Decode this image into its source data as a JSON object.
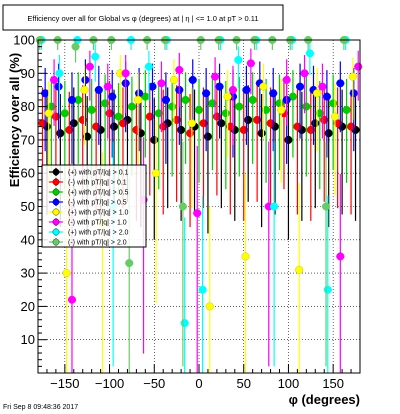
{
  "chart_data": {
    "type": "scatter",
    "title": "Efficiency over all for Global vs φ (degrees) at | η | <= 1.0 at pT > 0.11",
    "xlabel": "φ (degrees)",
    "ylabel": "Efficiency over all (%)",
    "xlim": [
      -180,
      180
    ],
    "ylim": [
      0,
      100
    ],
    "x_ticks": [
      -150,
      -100,
      -50,
      0,
      50,
      100,
      150
    ],
    "y_ticks": [
      10,
      20,
      30,
      40,
      50,
      60,
      70,
      80,
      90,
      100
    ],
    "x_tick_labels": [
      "−150",
      "−100",
      "−50",
      "0",
      "50",
      "100",
      "150"
    ],
    "y_tick_labels": [
      "10",
      "20",
      "30",
      "40",
      "50",
      "60",
      "70",
      "80",
      "90",
      "100"
    ],
    "grid": true,
    "legend_position": "left-middle",
    "footer": "Fri Sep  8 09:48:36 2017",
    "series": [
      {
        "name": "(+) with pT/|q| > 0.1",
        "color": "#000000",
        "marker": "circle",
        "x": [
          -170,
          -155,
          -140,
          -125,
          -110,
          -95,
          -80,
          -65,
          -50,
          -35,
          -20,
          -5,
          10,
          25,
          40,
          55,
          70,
          85,
          100,
          115,
          130,
          145,
          160,
          175
        ],
        "y": [
          74,
          72,
          75,
          71,
          73,
          74,
          76,
          72,
          70,
          75,
          73,
          74,
          71,
          75,
          73,
          76,
          72,
          74,
          70,
          73,
          75,
          72,
          74,
          73
        ]
      },
      {
        "name": "(-) with pT/|q| > 0.1",
        "color": "#ff0000",
        "marker": "circle",
        "x": [
          -175,
          -160,
          -145,
          -130,
          -115,
          -100,
          -85,
          -70,
          -55,
          -40,
          -25,
          -10,
          5,
          20,
          35,
          50,
          65,
          80,
          95,
          110,
          125,
          140,
          155,
          170
        ],
        "y": [
          75,
          77,
          73,
          76,
          74,
          78,
          75,
          73,
          77,
          74,
          76,
          72,
          75,
          77,
          74,
          73,
          76,
          75,
          78,
          74,
          73,
          76,
          75,
          74
        ]
      },
      {
        "name": "(+) with pT/|q| > 0.5",
        "color": "#00cc00",
        "marker": "circle",
        "x": [
          -165,
          -150,
          -135,
          -120,
          -105,
          -90,
          -75,
          -60,
          -45,
          -30,
          -15,
          0,
          15,
          30,
          45,
          60,
          75,
          90,
          105,
          120,
          135,
          150,
          165
        ],
        "y": [
          80,
          78,
          82,
          79,
          81,
          77,
          80,
          83,
          78,
          80,
          82,
          79,
          81,
          78,
          80,
          82,
          79,
          81,
          83,
          80,
          78,
          81,
          79
        ]
      },
      {
        "name": "(-) with pT/|q| > 0.5",
        "color": "#0000ff",
        "marker": "circle",
        "x": [
          -172,
          -157,
          -142,
          -127,
          -112,
          -97,
          -82,
          -67,
          -52,
          -37,
          -22,
          -7,
          8,
          23,
          38,
          53,
          68,
          83,
          98,
          113,
          128,
          143,
          158,
          173
        ],
        "y": [
          84,
          86,
          82,
          88,
          85,
          83,
          87,
          84,
          86,
          82,
          85,
          88,
          84,
          86,
          83,
          85,
          87,
          84,
          82,
          86,
          85,
          83,
          87,
          84
        ]
      },
      {
        "name": "(+) with pT/|q| > 1.0",
        "color": "#ffff00",
        "marker": "circle",
        "x": [
          -168,
          -148,
          -128,
          -108,
          -88,
          -68,
          -48,
          -28,
          -8,
          12,
          32,
          52,
          72,
          92,
          112,
          132,
          152,
          172
        ],
        "y": [
          78,
          30,
          85,
          45,
          90,
          82,
          60,
          88,
          75,
          20,
          83,
          35,
          86,
          79,
          31,
          84,
          77,
          89
        ]
      },
      {
        "name": "(-) with pT/|q| > 1.0",
        "color": "#ff00ff",
        "marker": "circle",
        "x": [
          -162,
          -142,
          -122,
          -102,
          -82,
          -62,
          -42,
          -22,
          -2,
          18,
          38,
          58,
          78,
          98,
          118,
          138,
          158,
          178
        ],
        "y": [
          88,
          22,
          92,
          86,
          90,
          52,
          87,
          91,
          48,
          89,
          85,
          93,
          50,
          88,
          90,
          86,
          35,
          92
        ]
      },
      {
        "name": "(+) with pT/|q| > 2.0",
        "color": "#00ffff",
        "marker": "circle",
        "x": [
          -176,
          -156,
          -136,
          -116,
          -96,
          -76,
          -56,
          -36,
          -16,
          4,
          24,
          44,
          64,
          84,
          104,
          124,
          144,
          164
        ],
        "y": [
          100,
          90,
          100,
          95,
          50,
          100,
          92,
          100,
          15,
          25,
          100,
          94,
          100,
          50,
          100,
          96,
          25,
          100
        ]
      },
      {
        "name": "(-) with pT/|q| > 2.0",
        "color": "#66cc66",
        "marker": "circle",
        "x": [
          -178,
          -158,
          -138,
          -118,
          -98,
          -78,
          -58,
          -38,
          -18,
          2,
          22,
          42,
          62,
          82,
          102,
          122,
          142,
          162
        ],
        "y": [
          100,
          100,
          98,
          100,
          100,
          33,
          100,
          100,
          50,
          100,
          100,
          100,
          100,
          100,
          100,
          100,
          50,
          100
        ]
      }
    ]
  }
}
